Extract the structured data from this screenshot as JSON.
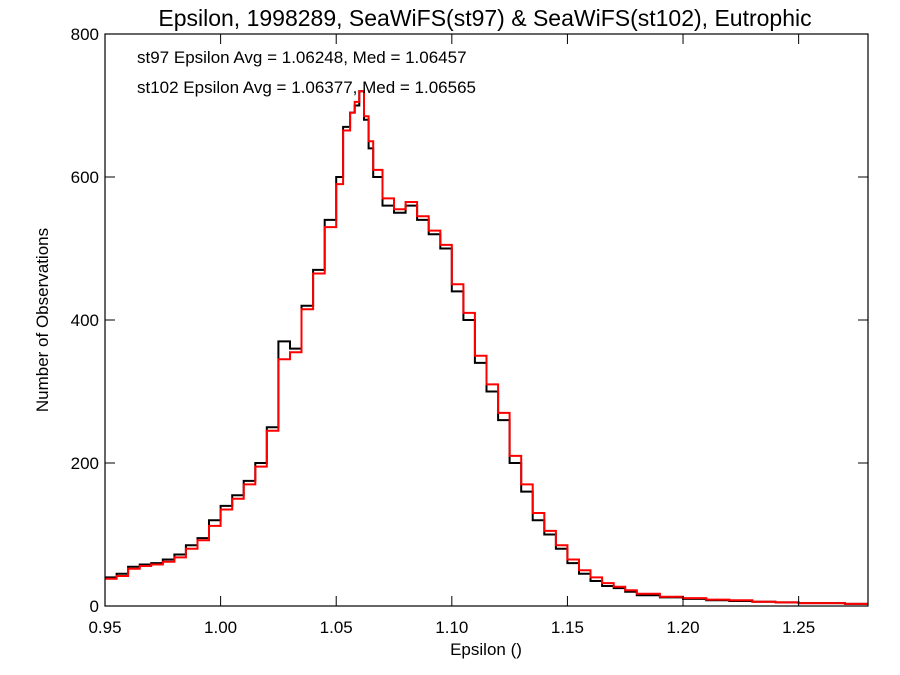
{
  "chart_data": {
    "type": "line",
    "title": "Epsilon, 1998289, SeaWiFS(st97) & SeaWiFS(st102), Eutrophic",
    "xlabel": "Epsilon ()",
    "ylabel": "Number of Observations",
    "xlim": [
      0.95,
      1.28
    ],
    "ylim": [
      0,
      800
    ],
    "xticks": [
      "0.95",
      "1.00",
      "1.05",
      "1.10",
      "1.15",
      "1.20",
      "1.25"
    ],
    "yticks": [
      "0",
      "200",
      "400",
      "600",
      "800"
    ],
    "step_style": "histogram",
    "annotations": [
      {
        "text": "st97 Epsilon Avg = 1.06248, Med = 1.06457",
        "color": "#000000"
      },
      {
        "text": "st102 Epsilon Avg = 1.06377, Med = 1.06565",
        "color": "#ff0000"
      }
    ],
    "series": [
      {
        "color": "#000000",
        "x": [
          0.95,
          0.955,
          0.96,
          0.965,
          0.97,
          0.975,
          0.98,
          0.985,
          0.99,
          0.995,
          1.0,
          1.005,
          1.01,
          1.015,
          1.02,
          1.025,
          1.03,
          1.035,
          1.04,
          1.045,
          1.05,
          1.053,
          1.056,
          1.058,
          1.06,
          1.062,
          1.064,
          1.066,
          1.07,
          1.075,
          1.08,
          1.085,
          1.09,
          1.095,
          1.1,
          1.105,
          1.11,
          1.115,
          1.12,
          1.125,
          1.13,
          1.135,
          1.14,
          1.145,
          1.15,
          1.155,
          1.16,
          1.165,
          1.17,
          1.175,
          1.18,
          1.19,
          1.2,
          1.21,
          1.22,
          1.23,
          1.24,
          1.25,
          1.26,
          1.27,
          1.28
        ],
        "values": [
          40,
          45,
          55,
          58,
          60,
          65,
          72,
          85,
          95,
          120,
          140,
          155,
          175,
          200,
          250,
          370,
          360,
          420,
          470,
          540,
          600,
          670,
          690,
          700,
          720,
          680,
          640,
          600,
          560,
          550,
          560,
          540,
          520,
          500,
          440,
          400,
          340,
          300,
          260,
          200,
          160,
          120,
          100,
          80,
          60,
          45,
          35,
          28,
          25,
          20,
          15,
          12,
          10,
          8,
          7,
          6,
          5,
          4,
          4,
          3,
          3
        ]
      },
      {
        "color": "#ff0000",
        "x": [
          0.95,
          0.955,
          0.96,
          0.965,
          0.97,
          0.975,
          0.98,
          0.985,
          0.99,
          0.995,
          1.0,
          1.005,
          1.01,
          1.015,
          1.02,
          1.025,
          1.03,
          1.035,
          1.04,
          1.045,
          1.05,
          1.053,
          1.056,
          1.058,
          1.06,
          1.062,
          1.064,
          1.066,
          1.07,
          1.075,
          1.08,
          1.085,
          1.09,
          1.095,
          1.1,
          1.105,
          1.11,
          1.115,
          1.12,
          1.125,
          1.13,
          1.135,
          1.14,
          1.145,
          1.15,
          1.155,
          1.16,
          1.165,
          1.17,
          1.175,
          1.18,
          1.19,
          1.2,
          1.21,
          1.22,
          1.23,
          1.24,
          1.25,
          1.26,
          1.27,
          1.28
        ],
        "values": [
          38,
          42,
          52,
          56,
          58,
          62,
          68,
          80,
          92,
          112,
          135,
          150,
          170,
          195,
          245,
          345,
          355,
          415,
          465,
          530,
          590,
          665,
          690,
          705,
          720,
          685,
          650,
          610,
          570,
          555,
          565,
          545,
          525,
          505,
          450,
          410,
          350,
          310,
          270,
          210,
          170,
          130,
          105,
          85,
          65,
          50,
          40,
          32,
          27,
          22,
          17,
          13,
          11,
          9,
          8,
          6,
          5,
          4,
          4,
          3,
          3
        ]
      }
    ]
  }
}
